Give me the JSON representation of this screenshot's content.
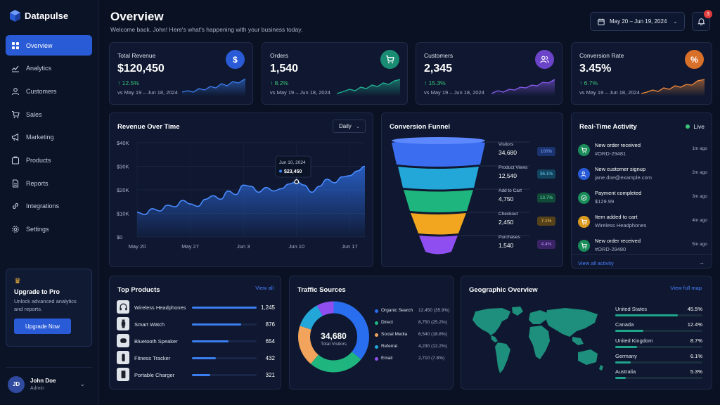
{
  "app": {
    "name": "Datapulse"
  },
  "sidebar": {
    "items": [
      {
        "label": "Overview",
        "icon": "grid-icon"
      },
      {
        "label": "Analytics",
        "icon": "analytics-icon"
      },
      {
        "label": "Customers",
        "icon": "user-icon"
      },
      {
        "label": "Sales",
        "icon": "cart-icon"
      },
      {
        "label": "Marketing",
        "icon": "megaphone-icon"
      },
      {
        "label": "Products",
        "icon": "box-icon"
      },
      {
        "label": "Reports",
        "icon": "document-icon"
      },
      {
        "label": "Integrations",
        "icon": "link-icon"
      },
      {
        "label": "Settings",
        "icon": "gear-icon"
      }
    ],
    "upgrade": {
      "title": "Upgrade to Pro",
      "desc": "Unlock advanced analytics and reports.",
      "button": "Upgrade Now"
    },
    "user": {
      "initials": "JD",
      "name": "John Doe",
      "role": "Admin"
    }
  },
  "header": {
    "title": "Overview",
    "subtitle": "Welcome back, John! Here's what's happening with your business today.",
    "date_range": "May 20 – Jun 19, 2024",
    "notifications": "3"
  },
  "kpis": [
    {
      "label": "Total Revenue",
      "value": "$120,450",
      "change": "12.5%",
      "period": "vs May 19 – Jun 18, 2024",
      "icon_text": "$",
      "color": "#2a5bd7",
      "spark_color": "#3b7ef0"
    },
    {
      "label": "Orders",
      "value": "1,540",
      "change": "8.2%",
      "period": "vs May 19 – Jun 18, 2024",
      "icon_text": "",
      "color": "#1a8c73",
      "spark_color": "#22b394"
    },
    {
      "label": "Customers",
      "value": "2,345",
      "change": "15.3%",
      "period": "vs May 19 – Jun 18, 2024",
      "icon_text": "",
      "color": "#6b44c9",
      "spark_color": "#8a5cf0"
    },
    {
      "label": "Conversion Rate",
      "value": "3.45%",
      "change": "6.7%",
      "period": "vs May 19 – Jun 18, 2024",
      "icon_text": "%",
      "color": "#d9702a",
      "spark_color": "#f08a3c"
    }
  ],
  "revenue": {
    "title": "Revenue Over Time",
    "filter": "Daily",
    "tooltip": {
      "date": "Jun 10, 2024",
      "value": "$23,450"
    }
  },
  "chart_data": {
    "type": "area",
    "title": "Revenue Over Time",
    "x_ticks": [
      "May 20",
      "May 27",
      "Jun 3",
      "Jun 10",
      "Jun 17"
    ],
    "y_ticks": [
      "$40K",
      "$30K",
      "$20K",
      "$10K",
      "$0"
    ],
    "ylim": [
      0,
      40000
    ],
    "x": [
      "May 20",
      "May 21",
      "May 22",
      "May 23",
      "May 24",
      "May 25",
      "May 26",
      "May 27",
      "May 28",
      "May 29",
      "May 30",
      "May 31",
      "Jun 1",
      "Jun 2",
      "Jun 3",
      "Jun 4",
      "Jun 5",
      "Jun 6",
      "Jun 7",
      "Jun 8",
      "Jun 9",
      "Jun 10",
      "Jun 11",
      "Jun 12",
      "Jun 13",
      "Jun 14",
      "Jun 15",
      "Jun 16",
      "Jun 17",
      "Jun 18",
      "Jun 19"
    ],
    "values": [
      10500,
      9500,
      12000,
      11000,
      13500,
      12800,
      15500,
      14000,
      13000,
      16000,
      17500,
      16000,
      19500,
      18000,
      22000,
      21500,
      19000,
      21000,
      19500,
      20500,
      22500,
      23450,
      22000,
      19000,
      21500,
      24500,
      23000,
      25500,
      26000,
      28000,
      30000
    ],
    "grid": true
  },
  "funnel": {
    "title": "Conversion Funnel",
    "stages": [
      {
        "name": "Visitors",
        "value": "34,680",
        "pct": "100%",
        "color": "#3b6df0",
        "pct_bg": "#1b3470",
        "pct_fg": "#7fa6ff"
      },
      {
        "name": "Product Views",
        "value": "12,540",
        "pct": "36.1%",
        "color": "#23a7d8",
        "pct_bg": "#124460",
        "pct_fg": "#6fcdf0"
      },
      {
        "name": "Add to Cart",
        "value": "4,750",
        "pct": "13.7%",
        "color": "#1fb57e",
        "pct_bg": "#114a38",
        "pct_fg": "#5ee0a8"
      },
      {
        "name": "Checkout",
        "value": "2,450",
        "pct": "7.1%",
        "color": "#f2a51f",
        "pct_bg": "#56421a",
        "pct_fg": "#ffc65c"
      },
      {
        "name": "Purchases",
        "value": "1,540",
        "pct": "4.4%",
        "color": "#8f4ff0",
        "pct_bg": "#3a2466",
        "pct_fg": "#b98cff"
      }
    ]
  },
  "activity": {
    "title": "Real-Time Activity",
    "live": "Live",
    "items": [
      {
        "title": "New order received",
        "sub": "#ORD-29481",
        "time": "1m ago",
        "color": "#1a8c5a"
      },
      {
        "title": "New customer signup",
        "sub": "jane.doe@example.com",
        "time": "2m ago",
        "color": "#2a5bd7"
      },
      {
        "title": "Payment completed",
        "sub": "$129.99",
        "time": "3m ago",
        "color": "#1a8c5a"
      },
      {
        "title": "Item added to cart",
        "sub": "Wireless Headphones",
        "time": "4m ago",
        "color": "#d99a1f"
      },
      {
        "title": "New order received",
        "sub": "#ORD-29480",
        "time": "5m ago",
        "color": "#1a8c5a"
      }
    ],
    "view_all": "View all activity"
  },
  "products": {
    "title": "Top Products",
    "link": "View all",
    "items": [
      {
        "name": "Wireless Headphones",
        "value": "1,245",
        "share": 1.0,
        "icon": "headphones-icon"
      },
      {
        "name": "Smart Watch",
        "value": "876",
        "share": 0.76,
        "icon": "watch-icon"
      },
      {
        "name": "Bluetooth Speaker",
        "value": "654",
        "share": 0.56,
        "icon": "speaker-icon"
      },
      {
        "name": "Fitness Tracker",
        "value": "432",
        "share": 0.37,
        "icon": "tracker-icon"
      },
      {
        "name": "Portable Charger",
        "value": "321",
        "share": 0.28,
        "icon": "charger-icon"
      }
    ]
  },
  "traffic": {
    "title": "Traffic Sources",
    "total": "34,680",
    "total_label": "Total Visitors",
    "sources": [
      {
        "name": "Organic Search",
        "value": "12,450 (35.9%)",
        "share": 35.9,
        "color": "#2a6ef0"
      },
      {
        "name": "Direct",
        "value": "8,750 (25.2%)",
        "share": 25.2,
        "color": "#1fb57e"
      },
      {
        "name": "Social Media",
        "value": "6,540 (18.8%)",
        "share": 18.8,
        "color": "#f2a35c"
      },
      {
        "name": "Referral",
        "value": "4,230 (12.2%)",
        "share": 12.2,
        "color": "#23a7d8"
      },
      {
        "name": "Email",
        "value": "2,710 (7.8%)",
        "share": 7.8,
        "color": "#8f4ff0"
      }
    ]
  },
  "geo": {
    "title": "Geographic Overview",
    "link": "View full map",
    "countries": [
      {
        "name": "United States",
        "pct": "45.5%",
        "share": 45.5
      },
      {
        "name": "Canada",
        "pct": "12.4%",
        "share": 12.4
      },
      {
        "name": "United Kingdom",
        "pct": "8.7%",
        "share": 8.7
      },
      {
        "name": "Germany",
        "pct": "6.1%",
        "share": 6.1
      },
      {
        "name": "Australia",
        "pct": "5.3%",
        "share": 5.3
      }
    ]
  }
}
